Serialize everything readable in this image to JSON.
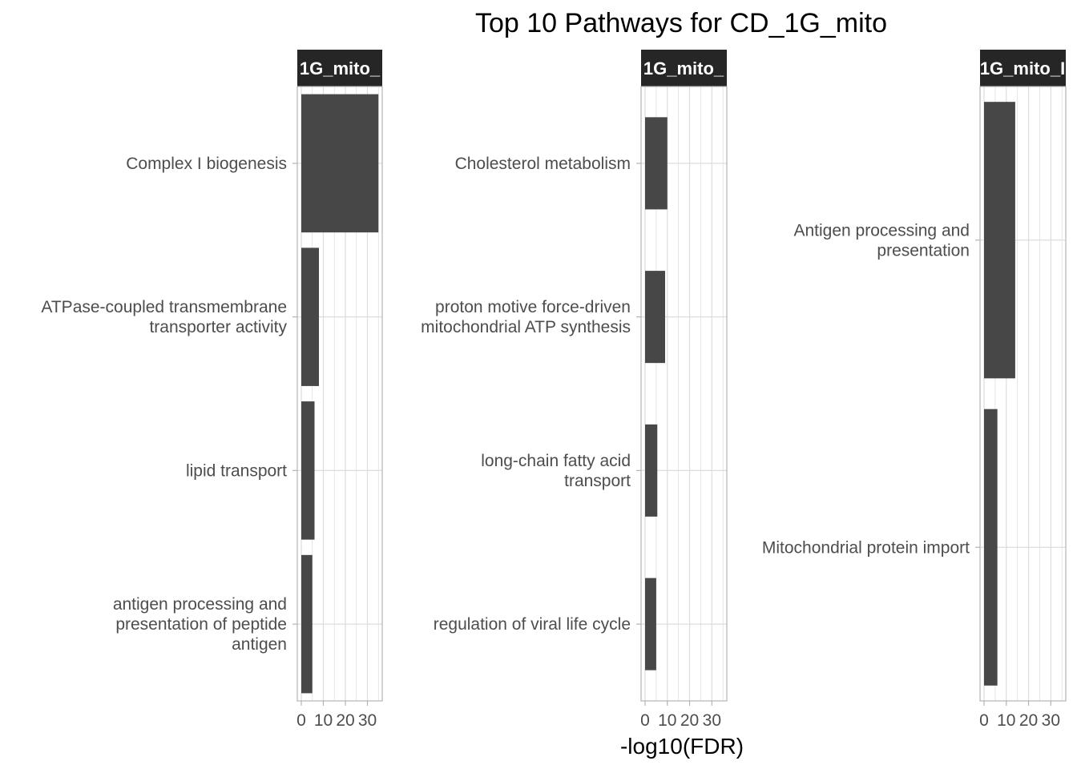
{
  "chart_data": {
    "type": "bar",
    "orientation": "horizontal",
    "title": "Top 10 Pathways for CD_1G_mito",
    "xlabel": "-log10(FDR)",
    "xlim": [
      0,
      36
    ],
    "x_ticks": [
      0,
      10,
      20,
      30
    ],
    "x_tick_labels": [
      "0",
      "10",
      "20",
      "30"
    ],
    "grid": true,
    "colors": {
      "bar": "#474747",
      "strip_bg": "#262626",
      "strip_text": "#ffffff",
      "grid": "#dcdcdc",
      "panel_border": "#b3b3b3",
      "label_text": "#4d4d4d",
      "title_text": "#000000"
    },
    "facets": [
      {
        "strip_label": "1G_mito_",
        "categories": [
          "Complex I biogenesis",
          "ATPase-coupled transmembrane transporter activity",
          "lipid transport",
          "antigen processing and presentation of peptide antigen"
        ],
        "category_label_lines": [
          [
            "Complex I biogenesis"
          ],
          [
            "ATPase-coupled transmembrane",
            "transporter activity"
          ],
          [
            "lipid transport"
          ],
          [
            "antigen processing and",
            "presentation of peptide",
            "antigen"
          ]
        ],
        "values": [
          35,
          8,
          6,
          5
        ],
        "bar_heights": [
          0.9,
          0.9,
          0.9,
          0.9
        ]
      },
      {
        "strip_label": "1G_mito_",
        "categories": [
          "Cholesterol metabolism",
          "proton motive force-driven mitochondrial ATP synthesis",
          "long-chain fatty acid transport",
          "regulation of viral life cycle"
        ],
        "category_label_lines": [
          [
            "Cholesterol metabolism"
          ],
          [
            "proton motive force-driven",
            "mitochondrial ATP synthesis"
          ],
          [
            "long-chain fatty acid",
            "transport"
          ],
          [
            "regulation of viral life cycle"
          ]
        ],
        "values": [
          10,
          9,
          5.5,
          5
        ],
        "bar_heights": [
          0.6,
          0.6,
          0.6,
          0.6
        ]
      },
      {
        "strip_label": "1G_mito_I",
        "categories": [
          "Antigen processing and presentation",
          "Mitochondrial protein import"
        ],
        "category_label_lines": [
          [
            "Antigen processing and",
            "presentation"
          ],
          [
            "Mitochondrial protein import"
          ]
        ],
        "values": [
          14,
          6
        ],
        "bar_heights": [
          0.9,
          0.9
        ]
      }
    ]
  }
}
